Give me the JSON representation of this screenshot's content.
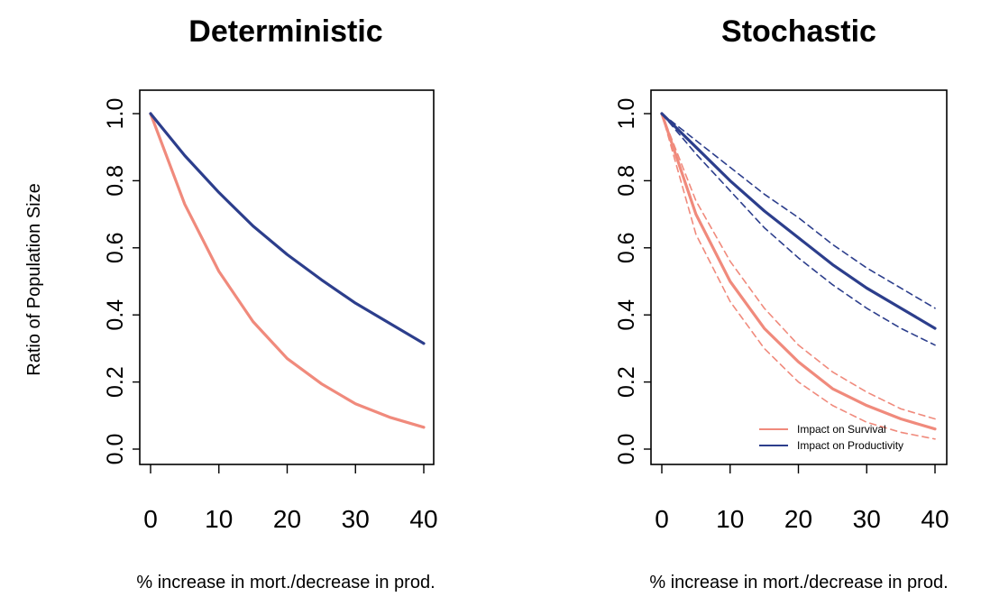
{
  "figure": {
    "ylabel": "Ratio of Population Size",
    "colors": {
      "survival": "#F08A7C",
      "productivity": "#2C3E8C"
    }
  },
  "chart_data": [
    {
      "type": "line",
      "title": "Deterministic",
      "xlabel": "% increase in mort./decrease in prod.",
      "ylabel": "Ratio of Population Size",
      "xlim": [
        0,
        40
      ],
      "ylim": [
        0,
        1
      ],
      "xticks": [
        "0",
        "10",
        "20",
        "30",
        "40"
      ],
      "yticks": [
        "0.0",
        "0.2",
        "0.4",
        "0.6",
        "0.8",
        "1.0"
      ],
      "grid": false,
      "series": [
        {
          "key": "survival",
          "x": [
            0,
            5,
            10,
            15,
            20,
            25,
            30,
            35,
            40
          ],
          "y": [
            1.0,
            0.73,
            0.53,
            0.38,
            0.27,
            0.195,
            0.135,
            0.095,
            0.065
          ]
        },
        {
          "key": "productivity",
          "x": [
            0,
            5,
            10,
            15,
            20,
            25,
            30,
            35,
            40
          ],
          "y": [
            1.0,
            0.875,
            0.765,
            0.665,
            0.58,
            0.505,
            0.435,
            0.375,
            0.315
          ]
        }
      ]
    },
    {
      "type": "line",
      "title": "Stochastic",
      "xlabel": "% increase in mort./decrease in prod.",
      "xlim": [
        0,
        40
      ],
      "ylim": [
        0,
        1
      ],
      "xticks": [
        "0",
        "10",
        "20",
        "30",
        "40"
      ],
      "yticks": [
        "0.0",
        "0.2",
        "0.4",
        "0.6",
        "0.8",
        "1.0"
      ],
      "grid": false,
      "legend_position": "bottom-right",
      "series": [
        {
          "key": "survival",
          "name": "Impact on Survival",
          "x": [
            0,
            5,
            10,
            15,
            20,
            25,
            30,
            35,
            40
          ],
          "y": [
            1.0,
            0.7,
            0.5,
            0.36,
            0.26,
            0.18,
            0.13,
            0.09,
            0.06
          ]
        },
        {
          "key": "survival",
          "dashed": true,
          "x": [
            0,
            5,
            10,
            15,
            20,
            25,
            30,
            35,
            40
          ],
          "y": [
            1.0,
            0.74,
            0.56,
            0.42,
            0.31,
            0.23,
            0.17,
            0.12,
            0.09
          ]
        },
        {
          "key": "survival",
          "dashed": true,
          "x": [
            0,
            5,
            10,
            15,
            20,
            25,
            30,
            35,
            40
          ],
          "y": [
            1.0,
            0.64,
            0.44,
            0.3,
            0.2,
            0.13,
            0.08,
            0.05,
            0.03
          ]
        },
        {
          "key": "productivity",
          "name": "Impact on Productivity",
          "x": [
            0,
            5,
            10,
            15,
            20,
            25,
            30,
            35,
            40
          ],
          "y": [
            1.0,
            0.9,
            0.8,
            0.71,
            0.63,
            0.55,
            0.48,
            0.42,
            0.36
          ]
        },
        {
          "key": "productivity",
          "dashed": true,
          "x": [
            0,
            5,
            10,
            15,
            20,
            25,
            30,
            35,
            40
          ],
          "y": [
            1.0,
            0.92,
            0.84,
            0.76,
            0.69,
            0.61,
            0.54,
            0.48,
            0.42
          ]
        },
        {
          "key": "productivity",
          "dashed": true,
          "x": [
            0,
            5,
            10,
            15,
            20,
            25,
            30,
            35,
            40
          ],
          "y": [
            1.0,
            0.88,
            0.77,
            0.66,
            0.57,
            0.49,
            0.42,
            0.36,
            0.31
          ]
        }
      ]
    }
  ]
}
